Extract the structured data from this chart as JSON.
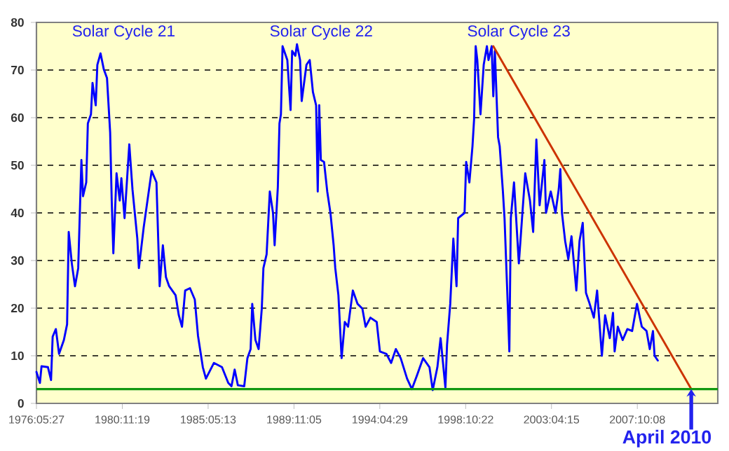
{
  "chart_data": {
    "type": "line",
    "xlim": [
      "1976-05-27",
      "2011-12-20"
    ],
    "ylim": [
      0,
      80
    ],
    "xticks": [
      {
        "value": "1976-05-27",
        "label": "1976:05:27"
      },
      {
        "value": "1980-11-19",
        "label": "1980:11:19"
      },
      {
        "value": "1985-05-13",
        "label": "1985:05:13"
      },
      {
        "value": "1989-11-05",
        "label": "1989:11:05"
      },
      {
        "value": "1994-04-29",
        "label": "1994:04:29"
      },
      {
        "value": "1998-10-22",
        "label": "1998:10:22"
      },
      {
        "value": "2003-04-15",
        "label": "2003:04:15"
      },
      {
        "value": "2007-10-08",
        "label": "2007:10:08"
      }
    ],
    "yticks": [
      0,
      10,
      20,
      30,
      40,
      50,
      60,
      70,
      80
    ],
    "grid": "y",
    "series": [
      {
        "color": "#0000ff",
        "x": [
          "1976-05-27",
          "1976-08",
          "1976-09",
          "1977-01",
          "1977-03",
          "1977-04",
          "1977-06",
          "1977-08",
          "1977-11",
          "1978-01",
          "1978-02",
          "1978-04",
          "1978-06",
          "1978-08",
          "1978-09",
          "1978-10",
          "1978-11",
          "1979-01",
          "1979-02",
          "1979-04",
          "1979-05",
          "1979-07",
          "1979-08",
          "1979-10",
          "1979-12",
          "1980-02",
          "1980-04",
          "1980-05",
          "1980-06",
          "1980-08",
          "1980-10",
          "1980-11",
          "1981-01",
          "1981-04",
          "1981-06",
          "1981-09",
          "1981-10",
          "1982-01",
          "1982-03",
          "1982-06",
          "1982-09",
          "1982-11",
          "1983-01",
          "1983-03",
          "1983-05",
          "1983-09",
          "1983-11",
          "1984-01",
          "1984-03",
          "1984-06",
          "1984-09",
          "1984-11",
          "1985-02",
          "1985-04",
          "1985-09",
          "1986-02",
          "1986-06",
          "1986-08",
          "1986-10",
          "1986-12",
          "1987-04",
          "1987-06",
          "1987-08",
          "1987-09",
          "1987-11",
          "1988-01",
          "1988-03",
          "1988-04",
          "1988-06",
          "1988-08",
          "1988-10",
          "1988-11",
          "1989-01",
          "1989-02",
          "1989-03",
          "1989-04",
          "1989-07",
          "1989-09",
          "1989-10",
          "1989-12",
          "1990-01",
          "1990-03",
          "1990-04",
          "1990-07",
          "1990-09",
          "1990-11",
          "1991-01",
          "1991-02",
          "1991-03",
          "1991-04",
          "1991-06",
          "1991-08",
          "1991-10",
          "1991-12",
          "1992-01",
          "1992-03",
          "1992-05",
          "1992-07",
          "1992-09",
          "1992-12",
          "1993-03",
          "1993-06",
          "1993-08",
          "1993-11",
          "1994-03",
          "1994-05",
          "1994-09",
          "1994-12",
          "1995-03",
          "1995-06",
          "1995-10",
          "1996-01",
          "1996-04",
          "1996-08",
          "1996-12",
          "1997-02",
          "1997-05",
          "1997-07",
          "1997-10",
          "1997-11",
          "1998-01",
          "1998-03",
          "1998-05",
          "1998-06",
          "1998-10",
          "1998-11",
          "1999-01",
          "1999-03",
          "1999-04",
          "1999-05",
          "1999-06",
          "1999-08",
          "1999-10",
          "1999-12",
          "2000-01",
          "2000-03",
          "2000-04",
          "2000-05",
          "2000-07",
          "2000-08",
          "2000-10",
          "2000-11",
          "2001-01",
          "2001-02",
          "2001-03",
          "2001-05",
          "2001-08",
          "2001-10",
          "2001-12",
          "2002-03",
          "2002-05",
          "2002-07",
          "2002-09",
          "2002-12",
          "2003-01",
          "2003-04",
          "2003-07",
          "2003-09",
          "2003-10",
          "2003-11",
          "2004-01",
          "2004-03",
          "2004-05",
          "2004-08",
          "2004-10",
          "2004-12",
          "2005-02",
          "2005-04",
          "2005-07",
          "2005-09",
          "2005-12",
          "2006-02",
          "2006-05",
          "2006-07",
          "2006-08",
          "2006-10",
          "2007-01",
          "2007-04",
          "2007-07",
          "2007-10",
          "2008-01",
          "2008-04",
          "2008-06",
          "2008-08",
          "2008-09",
          "2008-11"
        ],
        "values": [
          6.6,
          4.3,
          7.8,
          7.6,
          4.9,
          14,
          15.6,
          10.4,
          13.3,
          16.6,
          36,
          29.4,
          24.6,
          28.4,
          40,
          51.1,
          43.5,
          46.4,
          58.8,
          60.7,
          67.3,
          62.6,
          71.1,
          73.5,
          70.2,
          68.3,
          56.9,
          42.6,
          31.5,
          48.3,
          42.6,
          47.3,
          38.9,
          54.4,
          44.9,
          34.6,
          28.4,
          37,
          41.6,
          48.8,
          46.4,
          24.6,
          33.2,
          26.5,
          24.6,
          22.7,
          18.5,
          16.1,
          23.7,
          24.2,
          21.8,
          14.2,
          7.6,
          5.2,
          8.5,
          7.6,
          4.3,
          3.6,
          7.1,
          3.8,
          3.6,
          9.5,
          11.4,
          20.9,
          13.3,
          11.4,
          19.9,
          28.4,
          31.3,
          44.5,
          40,
          33.2,
          45.4,
          58.8,
          60.7,
          75,
          72.1,
          61.6,
          74,
          73,
          75.4,
          72.1,
          63.5,
          71.1,
          72.1,
          65.4,
          62.6,
          44.5,
          62.6,
          51.1,
          50.7,
          44.5,
          40,
          33.2,
          28.4,
          22.7,
          9.5,
          17.1,
          16.1,
          23.7,
          20.9,
          19.9,
          16.1,
          18,
          17.1,
          10.9,
          10.4,
          8.5,
          11.4,
          9.5,
          5.2,
          3,
          5.7,
          9.5,
          7.6,
          2.8,
          7.6,
          13.7,
          3.3,
          12.3,
          20.9,
          34.6,
          24.6,
          38.9,
          40,
          50.7,
          46.4,
          54,
          59.7,
          75,
          72.1,
          60.7,
          71.1,
          75,
          72.1,
          75,
          64.5,
          74,
          55.9,
          54,
          44.5,
          38.9,
          20.9,
          10.9,
          38.9,
          46.4,
          29.4,
          38.9,
          48.3,
          42.6,
          36,
          55.4,
          41.6,
          51.1,
          40,
          44.5,
          40,
          45,
          49.2,
          40,
          34.1,
          30.3,
          35.1,
          23.7,
          34.1,
          37.9,
          23.2,
          21.3,
          18,
          23.7,
          10,
          18.5,
          13.7,
          19,
          10.9,
          16.1,
          13.3,
          15.6,
          15.2,
          20.9,
          16.1,
          15.2,
          11.4,
          15.2,
          10,
          9
        ]
      },
      {
        "color": "#cc3300",
        "x": [
          "2000-04",
          "2010-08"
        ],
        "values": [
          75,
          3
        ]
      }
    ],
    "ref_lines": [
      {
        "axis": "y",
        "value": 3,
        "color": "#119911"
      }
    ],
    "annotations": [
      "Solar Cycle 21",
      "Solar Cycle 22",
      "Solar Cycle 23",
      {
        "text": "April 2010",
        "x": "2010-08",
        "y": 3
      }
    ]
  }
}
